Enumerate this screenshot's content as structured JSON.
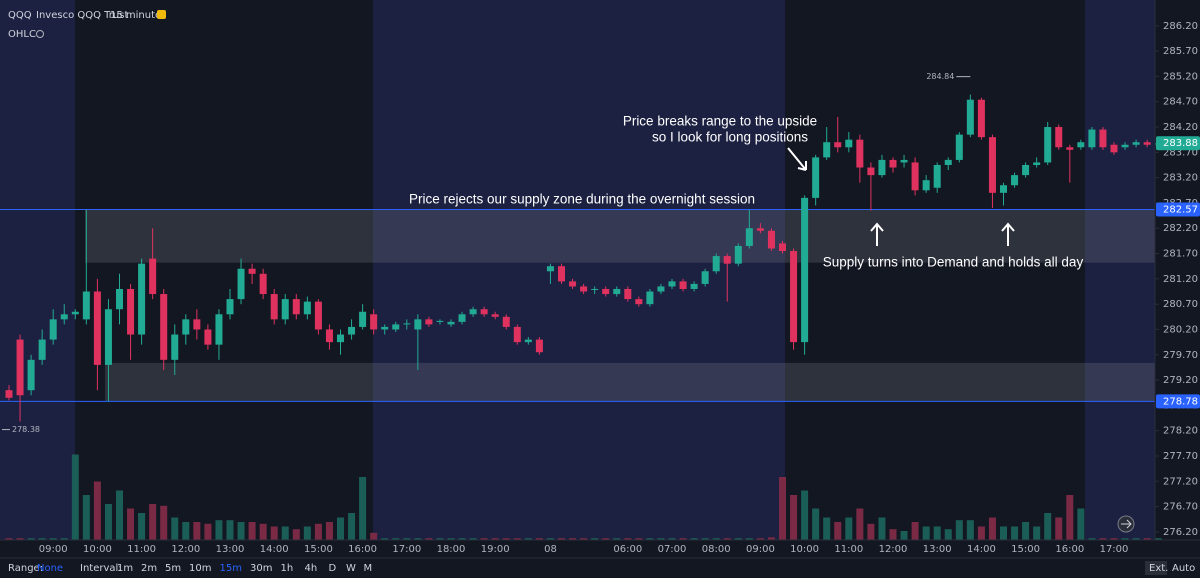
{
  "header": {
    "symbol": "QQQ",
    "name": "Invesco QQQ Trust",
    "interval": "15 minutes",
    "indicator": "OHLC"
  },
  "toolbar": {
    "range_label": "Range:",
    "range_value": "None",
    "interval_label": "Interval:",
    "intervals": [
      "1m",
      "2m",
      "5m",
      "10m",
      "15m",
      "30m",
      "1h",
      "4h",
      "D",
      "W",
      "M"
    ],
    "ext": "Ext.",
    "auto": "Auto"
  },
  "chart_data": {
    "type": "candlestick",
    "annotations": [
      "Price rejects our supply zone during the overnight session",
      "Price breaks range to the upside",
      "so I look for long positions",
      "Supply turns into Demand and holds all day"
    ],
    "categories": [
      null,
      null,
      null,
      null,
      "09:00",
      null,
      null,
      null,
      "10:00",
      null,
      null,
      null,
      "11:00",
      null,
      null,
      null,
      "12:00",
      null,
      null,
      null,
      "13:00",
      null,
      null,
      null,
      "14:00",
      null,
      null,
      null,
      "15:00",
      null,
      null,
      null,
      "16:00",
      null,
      null,
      null,
      "17:00",
      null,
      null,
      null,
      "18:00",
      null,
      null,
      null,
      "19:00",
      null,
      null,
      null,
      null,
      "08",
      null,
      null,
      null,
      null,
      null,
      null,
      "06:00",
      null,
      null,
      null,
      "07:00",
      null,
      null,
      null,
      "08:00",
      null,
      null,
      null,
      "09:00",
      null,
      null,
      null,
      "10:00",
      null,
      null,
      null,
      "11:00",
      null,
      null,
      null,
      "12:00",
      null,
      null,
      null,
      "13:00",
      null,
      null,
      null,
      "14:00",
      null,
      null,
      null,
      "15:00",
      null,
      null,
      null,
      "16:00",
      null,
      null,
      null,
      "17:00",
      null,
      null,
      null,
      null
    ],
    "open": [
      279.0,
      280.0,
      279.0,
      279.6,
      280.0,
      280.4,
      280.5,
      280.4,
      280.95,
      279.5,
      280.6,
      281.0,
      280.1,
      281.6,
      280.9,
      279.6,
      280.1,
      280.4,
      280.2,
      279.9,
      280.5,
      280.8,
      281.4,
      281.3,
      280.9,
      280.4,
      280.8,
      280.5,
      280.75,
      280.2,
      279.95,
      280.1,
      280.25,
      280.5,
      280.2,
      280.2,
      280.3,
      280.2,
      280.4,
      280.35,
      280.3,
      280.35,
      280.5,
      280.6,
      280.5,
      280.45,
      280.25,
      279.95,
      280.0,
      281.35,
      281.45,
      281.15,
      281.05,
      280.98,
      281.0,
      280.9,
      281.0,
      280.8,
      280.7,
      280.95,
      281.05,
      281.15,
      281.0,
      281.1,
      281.35,
      281.65,
      281.5,
      281.85,
      282.2,
      282.15,
      281.9,
      281.75,
      279.95,
      282.8,
      283.6,
      283.9,
      283.8,
      283.95,
      283.4,
      283.25,
      283.55,
      283.5,
      283.5,
      282.95,
      283.0,
      283.45,
      283.55,
      284.05,
      284.74,
      284.0,
      282.9,
      283.05,
      283.25,
      283.45,
      283.5,
      284.2,
      283.8,
      283.8,
      283.8,
      284.15,
      283.85,
      283.8,
      283.85,
      283.9,
      283.85
    ],
    "high": [
      279.1,
      280.1,
      279.7,
      280.2,
      280.6,
      280.7,
      280.6,
      282.57,
      281.2,
      280.8,
      281.3,
      281.1,
      281.6,
      282.2,
      281.0,
      280.3,
      280.5,
      280.6,
      280.3,
      280.6,
      281.0,
      281.6,
      281.5,
      281.4,
      281.0,
      280.9,
      280.9,
      280.85,
      280.8,
      280.3,
      280.2,
      280.4,
      280.7,
      280.6,
      280.3,
      280.35,
      280.4,
      280.5,
      280.45,
      280.4,
      280.4,
      280.55,
      280.65,
      280.65,
      280.55,
      280.5,
      280.3,
      280.05,
      280.05,
      281.5,
      281.5,
      281.2,
      281.1,
      281.05,
      281.05,
      281.05,
      281.05,
      280.85,
      281.0,
      281.1,
      281.2,
      281.2,
      281.15,
      281.4,
      281.7,
      281.7,
      281.9,
      282.57,
      282.3,
      282.2,
      281.95,
      281.8,
      282.85,
      283.65,
      284.2,
      284.4,
      284.1,
      284.05,
      283.5,
      283.65,
      283.6,
      283.65,
      283.6,
      283.25,
      283.5,
      283.6,
      284.1,
      284.84,
      284.78,
      284.05,
      283.1,
      283.3,
      283.5,
      283.6,
      284.3,
      284.25,
      283.85,
      283.95,
      284.2,
      284.2,
      283.9,
      283.9,
      283.95,
      283.95,
      283.92
    ],
    "low": [
      278.8,
      278.38,
      278.9,
      279.5,
      279.9,
      280.3,
      280.4,
      280.3,
      279.0,
      278.78,
      280.3,
      279.6,
      279.9,
      280.8,
      279.4,
      279.3,
      279.9,
      280.0,
      279.8,
      279.6,
      280.4,
      280.7,
      281.1,
      280.8,
      280.3,
      280.3,
      280.4,
      280.4,
      280.1,
      279.8,
      279.7,
      280.0,
      280.2,
      280.1,
      280.1,
      280.15,
      280.2,
      279.4,
      280.25,
      280.3,
      280.25,
      280.3,
      280.45,
      280.45,
      280.4,
      280.2,
      279.9,
      279.9,
      279.7,
      281.1,
      281.1,
      281.0,
      280.9,
      280.9,
      280.85,
      280.85,
      280.75,
      280.65,
      280.65,
      280.9,
      281.0,
      280.95,
      280.95,
      281.05,
      281.3,
      280.75,
      281.45,
      281.8,
      282.1,
      281.75,
      281.7,
      279.8,
      279.7,
      282.65,
      283.55,
      283.7,
      283.7,
      283.1,
      282.55,
      283.2,
      283.3,
      283.4,
      282.85,
      282.9,
      282.9,
      283.35,
      283.5,
      284.0,
      283.95,
      282.6,
      282.65,
      283.0,
      283.2,
      283.4,
      283.45,
      283.75,
      283.1,
      283.75,
      283.75,
      283.75,
      283.65,
      283.75,
      283.8,
      283.8,
      283.8
    ],
    "close": [
      278.85,
      278.9,
      279.6,
      280.0,
      280.4,
      280.5,
      280.55,
      280.95,
      279.5,
      280.6,
      281.0,
      280.1,
      281.5,
      280.9,
      279.6,
      280.1,
      280.4,
      280.2,
      279.9,
      280.5,
      280.8,
      281.4,
      281.3,
      280.9,
      280.4,
      280.8,
      280.5,
      280.75,
      280.2,
      279.95,
      280.1,
      280.25,
      280.55,
      280.2,
      280.25,
      280.3,
      280.32,
      280.4,
      280.3,
      280.37,
      280.35,
      280.5,
      280.6,
      280.5,
      280.45,
      280.25,
      279.95,
      280.0,
      279.75,
      281.45,
      281.15,
      281.05,
      280.95,
      281.0,
      280.9,
      281.0,
      280.8,
      280.7,
      280.95,
      281.05,
      281.15,
      281.0,
      281.1,
      281.35,
      281.65,
      281.5,
      281.85,
      282.2,
      282.15,
      281.8,
      281.75,
      279.95,
      282.8,
      283.6,
      283.9,
      283.8,
      283.95,
      283.4,
      283.25,
      283.55,
      283.4,
      283.55,
      282.95,
      283.15,
      283.45,
      283.55,
      284.05,
      284.74,
      284.0,
      282.9,
      283.05,
      283.25,
      283.45,
      283.5,
      284.2,
      283.8,
      283.75,
      283.9,
      284.15,
      283.8,
      283.7,
      283.85,
      283.9,
      283.85,
      283.88
    ],
    "volume": [
      2,
      2,
      2,
      2,
      2,
      2,
      95,
      50,
      65,
      40,
      55,
      35,
      30,
      40,
      38,
      25,
      20,
      20,
      18,
      22,
      22,
      20,
      20,
      18,
      15,
      15,
      12,
      15,
      18,
      20,
      25,
      30,
      70,
      8,
      2,
      2,
      2,
      2,
      2,
      2,
      2,
      2,
      2,
      2,
      2,
      2,
      2,
      2,
      2,
      2,
      2,
      2,
      2,
      2,
      2,
      2,
      2,
      2,
      2,
      2,
      2,
      2,
      2,
      2,
      2,
      2,
      2,
      2,
      2,
      3,
      70,
      50,
      55,
      35,
      25,
      20,
      25,
      35,
      18,
      25,
      12,
      10,
      20,
      15,
      15,
      12,
      22,
      22,
      15,
      25,
      15,
      15,
      20,
      15,
      30,
      25,
      50,
      35,
      2,
      2,
      2,
      2,
      2,
      2,
      2
    ],
    "up_color": "#22ab94",
    "down_color": "#e0325f",
    "up_volume_color": "#1b5e57",
    "down_volume_color": "#7a2a44",
    "zones": [
      {
        "from": 281.52,
        "to": 282.57
      },
      {
        "from": 278.78,
        "to": 279.54
      }
    ],
    "price_lines": [
      282.57,
      278.78
    ],
    "last_price": 283.88,
    "max_marker": 284.84,
    "min_marker": 278.38,
    "ylim": [
      276.04,
      286.71
    ],
    "vlim": [
      0,
      100
    ],
    "yticks": [
      {
        "value": 276.2,
        "label": "276.20"
      },
      {
        "value": 276.7,
        "label": "276.70"
      },
      {
        "value": 277.2,
        "label": "277.20"
      },
      {
        "value": 277.7,
        "label": "277.70"
      },
      {
        "value": 278.2,
        "label": "278.20"
      },
      {
        "value": 278.7,
        "label": "278.70"
      },
      {
        "value": 279.2,
        "label": "279.20"
      },
      {
        "value": 279.7,
        "label": "279.70"
      },
      {
        "value": 280.2,
        "label": "280.20"
      },
      {
        "value": 280.7,
        "label": "280.70"
      },
      {
        "value": 281.2,
        "label": "281.20"
      },
      {
        "value": 281.7,
        "label": "281.70"
      },
      {
        "value": 282.2,
        "label": "282.20"
      },
      {
        "value": 282.7,
        "label": "282.70"
      },
      {
        "value": 283.2,
        "label": "283.20"
      },
      {
        "value": 283.7,
        "label": "283.70"
      },
      {
        "value": 284.2,
        "label": "284.20"
      },
      {
        "value": 284.7,
        "label": "284.70"
      },
      {
        "value": 285.2,
        "label": "285.20"
      },
      {
        "value": 285.7,
        "label": "285.70"
      },
      {
        "value": 286.2,
        "label": "286.20"
      }
    ],
    "grid": false
  }
}
